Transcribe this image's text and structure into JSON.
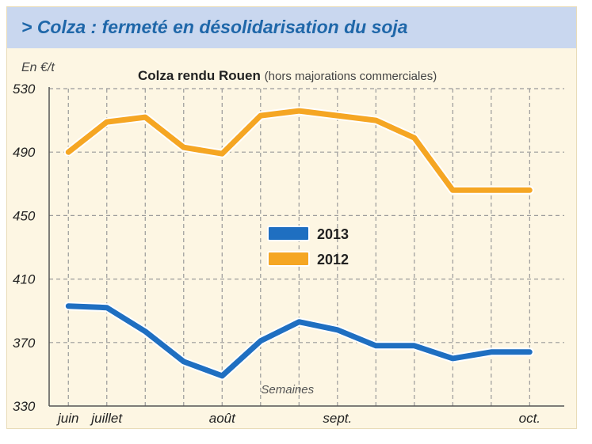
{
  "header": {
    "title": "> Colza : fermeté en désolidarisation du soja",
    "unit": "En €/t",
    "subtitle_main": "Colza rendu Rouen",
    "subtitle_note": "(hors majorations commerciales)"
  },
  "colors": {
    "series_2013": "#1f6fc1",
    "series_2012": "#f5a623",
    "grid": "#9a9a9a",
    "background": "#fdf6e3",
    "title_band": "#c9d7ef",
    "title_text": "#1f67a9"
  },
  "chart_data": {
    "type": "line",
    "title": "Colza rendu Rouen",
    "subtitle": "(hors majorations commerciales)",
    "ylabel": "En €/t",
    "xlabel": "Semaines",
    "ylim": [
      330,
      530
    ],
    "yticks": [
      330,
      370,
      410,
      450,
      490,
      530
    ],
    "x_week_ticks": [
      1,
      2,
      3,
      4,
      5,
      6,
      7,
      8,
      9,
      10,
      11,
      12,
      13
    ],
    "x_month_labels": [
      {
        "label": "juin",
        "week": 1
      },
      {
        "label": "juillet",
        "week": 2
      },
      {
        "label": "août",
        "week": 5
      },
      {
        "label": "sept.",
        "week": 8
      },
      {
        "label": "oct.",
        "week": 13
      }
    ],
    "grid": true,
    "legend_position": "center",
    "series": [
      {
        "name": "2013",
        "x": [
          1,
          2,
          3,
          4,
          5,
          6,
          7,
          8,
          9,
          10,
          11,
          12,
          13
        ],
        "values": [
          393,
          392,
          377,
          358,
          349,
          371,
          383,
          378,
          368,
          368,
          360,
          364,
          364
        ]
      },
      {
        "name": "2012",
        "x": [
          1,
          2,
          3,
          4,
          5,
          6,
          7,
          8,
          9,
          10,
          11,
          12,
          13
        ],
        "values": [
          490,
          509,
          512,
          493,
          489,
          513,
          516,
          513,
          510,
          499,
          466,
          466,
          466
        ]
      }
    ]
  }
}
